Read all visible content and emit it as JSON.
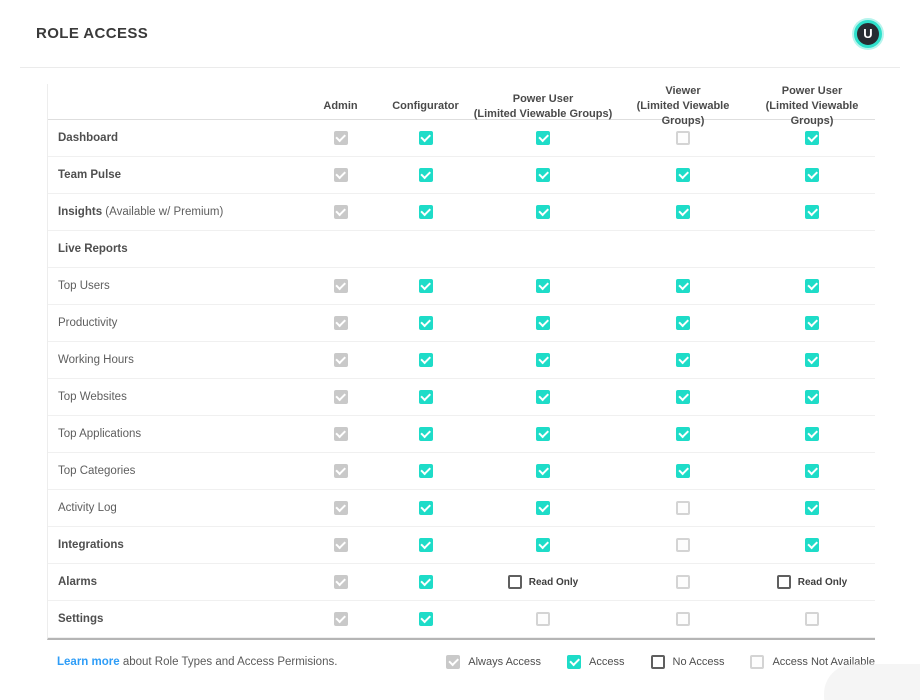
{
  "page": {
    "title": "ROLE ACCESS",
    "avatar_initial": "U"
  },
  "table": {
    "columns": [
      {
        "label": "Admin",
        "sub": ""
      },
      {
        "label": "Configurator",
        "sub": ""
      },
      {
        "label": "Power User",
        "sub": "(Limited Viewable Groups)"
      },
      {
        "label": "Viewer",
        "sub": "(Limited Viewable Groups)"
      },
      {
        "label": "Power User",
        "sub": "(Limited Viewable Groups)"
      }
    ],
    "readonly_label": "Read Only",
    "rows": [
      {
        "label": "Dashboard",
        "bold": true,
        "suffix": "",
        "section": false,
        "cells": [
          "always",
          "access",
          "access",
          "na",
          "access"
        ]
      },
      {
        "label": "Team Pulse",
        "bold": true,
        "suffix": "",
        "section": false,
        "cells": [
          "always",
          "access",
          "access",
          "access",
          "access"
        ]
      },
      {
        "label": "Insights",
        "bold": true,
        "suffix": " (Available w/ Premium)",
        "section": false,
        "cells": [
          "always",
          "access",
          "access",
          "access",
          "access"
        ]
      },
      {
        "label": "Live Reports",
        "bold": true,
        "suffix": "",
        "section": true,
        "cells": []
      },
      {
        "label": "Top Users",
        "bold": false,
        "suffix": "",
        "section": false,
        "cells": [
          "always",
          "access",
          "access",
          "access",
          "access"
        ]
      },
      {
        "label": "Productivity",
        "bold": false,
        "suffix": "",
        "section": false,
        "cells": [
          "always",
          "access",
          "access",
          "access",
          "access"
        ]
      },
      {
        "label": "Working Hours",
        "bold": false,
        "suffix": "",
        "section": false,
        "cells": [
          "always",
          "access",
          "access",
          "access",
          "access"
        ]
      },
      {
        "label": "Top Websites",
        "bold": false,
        "suffix": "",
        "section": false,
        "cells": [
          "always",
          "access",
          "access",
          "access",
          "access"
        ]
      },
      {
        "label": "Top Applications",
        "bold": false,
        "suffix": "",
        "section": false,
        "cells": [
          "always",
          "access",
          "access",
          "access",
          "access"
        ]
      },
      {
        "label": "Top Categories",
        "bold": false,
        "suffix": "",
        "section": false,
        "cells": [
          "always",
          "access",
          "access",
          "access",
          "access"
        ]
      },
      {
        "label": "Activity Log",
        "bold": false,
        "suffix": "",
        "section": false,
        "cells": [
          "always",
          "access",
          "access",
          "na",
          "access"
        ]
      },
      {
        "label": "Integrations",
        "bold": true,
        "suffix": "",
        "section": false,
        "cells": [
          "always",
          "access",
          "access",
          "na",
          "access"
        ]
      },
      {
        "label": "Alarms",
        "bold": true,
        "suffix": "",
        "section": false,
        "cells": [
          "always",
          "access",
          "readonly",
          "na",
          "readonly"
        ]
      },
      {
        "label": "Settings",
        "bold": true,
        "suffix": "",
        "section": false,
        "cells": [
          "always",
          "access",
          "na",
          "na",
          "na"
        ]
      }
    ]
  },
  "footer": {
    "link": "Learn more",
    "text": " about Role Types and Access Permisions.",
    "legend": [
      {
        "state": "always",
        "label": "Always Access"
      },
      {
        "state": "access",
        "label": "Access"
      },
      {
        "state": "none",
        "label": "No Access"
      },
      {
        "state": "na",
        "label": "Access Not Available"
      }
    ]
  },
  "colors": {
    "accent_teal": "#1edcc8",
    "always_gray": "#c9c9c9",
    "no_access_border": "#5f5f5f",
    "not_available_border": "#d4d4d4",
    "link_blue": "#2e9df7",
    "avatar_bg": "#262b31",
    "avatar_ring": "#2ee0cb"
  }
}
